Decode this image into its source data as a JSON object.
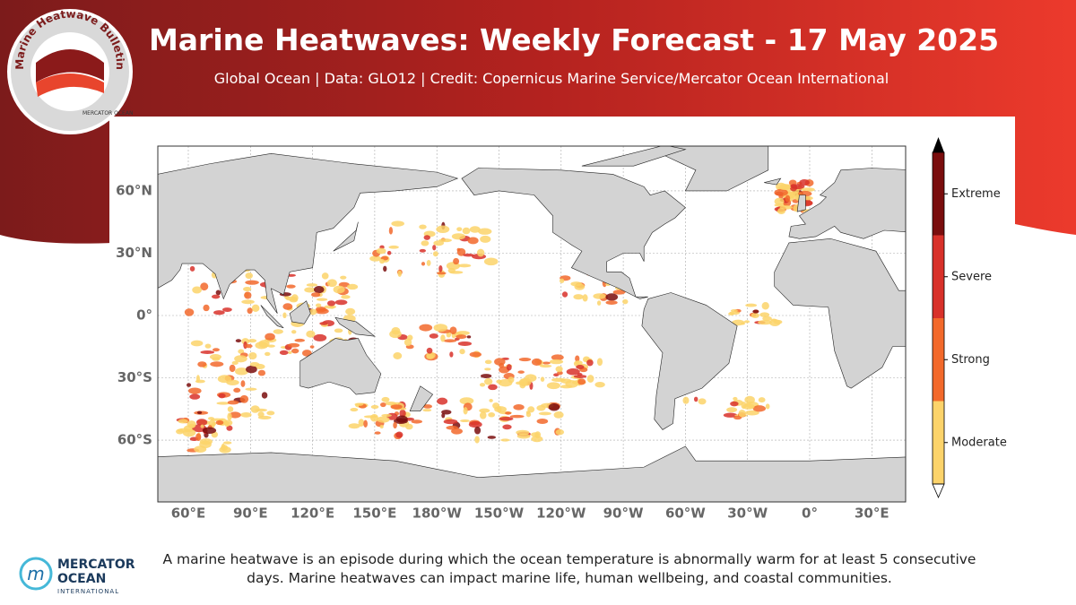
{
  "header": {
    "title": "Marine Heatwaves: Weekly Forecast - 17 May 2025",
    "subtitle": "Global Ocean  |  Data: GLO12  |  Credit: Copernicus Marine Service/Mercator Ocean International"
  },
  "badge": {
    "text": "Marine Heatwave Bulletin",
    "org": "MERCATOR OCEAN"
  },
  "map": {
    "lat_labels": [
      "60°N",
      "30°N",
      "0°",
      "30°S",
      "60°S"
    ],
    "lon_labels": [
      "60°E",
      "90°E",
      "120°E",
      "150°E",
      "180°W",
      "150°W",
      "120°W",
      "90°W",
      "60°W",
      "30°W",
      "0°",
      "30°E"
    ]
  },
  "legend": {
    "levels": [
      {
        "label": "Extreme",
        "color": "#7a0d0d"
      },
      {
        "label": "Severe",
        "color": "#d8312a"
      },
      {
        "label": "Strong",
        "color": "#f2692b"
      },
      {
        "label": "Moderate",
        "color": "#fcd36a"
      }
    ]
  },
  "footer": {
    "description": "A marine heatwave is an episode during which the ocean temperature is abnormally warm for at least 5 consecutive days. Marine heatwaves can impact marine life, human wellbeing, and coastal communities.",
    "logo": {
      "lines": [
        "MERCATOR",
        "OCEAN"
      ],
      "tagline": "INTERNATIONAL"
    }
  }
}
